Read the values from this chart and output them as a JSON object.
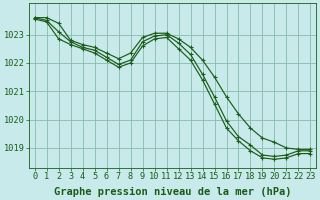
{
  "background_color": "#c8eaea",
  "plot_bg_color": "#c8eaea",
  "grid_color": "#88bbaa",
  "line_color": "#1a5c1a",
  "xlabel": "Graphe pression niveau de la mer (hPa)",
  "xlabel_fontsize": 7.5,
  "tick_fontsize": 6.2,
  "ylim": [
    1018.3,
    1024.1
  ],
  "xlim": [
    -0.5,
    23.5
  ],
  "yticks": [
    1019,
    1020,
    1021,
    1022,
    1023
  ],
  "xticks": [
    0,
    1,
    2,
    3,
    4,
    5,
    6,
    7,
    8,
    9,
    10,
    11,
    12,
    13,
    14,
    15,
    16,
    17,
    18,
    19,
    20,
    21,
    22,
    23
  ],
  "series": [
    [
      1023.6,
      1023.6,
      1023.4,
      1022.8,
      1022.65,
      1022.55,
      1022.35,
      1022.15,
      1022.35,
      1022.9,
      1023.05,
      1023.05,
      1022.85,
      1022.55,
      1022.1,
      1021.5,
      1020.8,
      1020.2,
      1019.7,
      1019.35,
      1019.2,
      1019.0,
      1018.95,
      1018.95
    ],
    [
      1023.6,
      1023.5,
      1023.1,
      1022.75,
      1022.55,
      1022.45,
      1022.2,
      1021.95,
      1022.1,
      1022.75,
      1022.95,
      1023.0,
      1022.7,
      1022.3,
      1021.6,
      1020.8,
      1019.95,
      1019.4,
      1019.1,
      1018.75,
      1018.7,
      1018.75,
      1018.9,
      1018.9
    ],
    [
      1023.55,
      1023.45,
      1022.85,
      1022.65,
      1022.5,
      1022.35,
      1022.1,
      1021.85,
      1022.0,
      1022.6,
      1022.85,
      1022.9,
      1022.5,
      1022.1,
      1021.4,
      1020.55,
      1019.7,
      1019.25,
      1018.9,
      1018.65,
      1018.6,
      1018.65,
      1018.8,
      1018.8
    ]
  ]
}
